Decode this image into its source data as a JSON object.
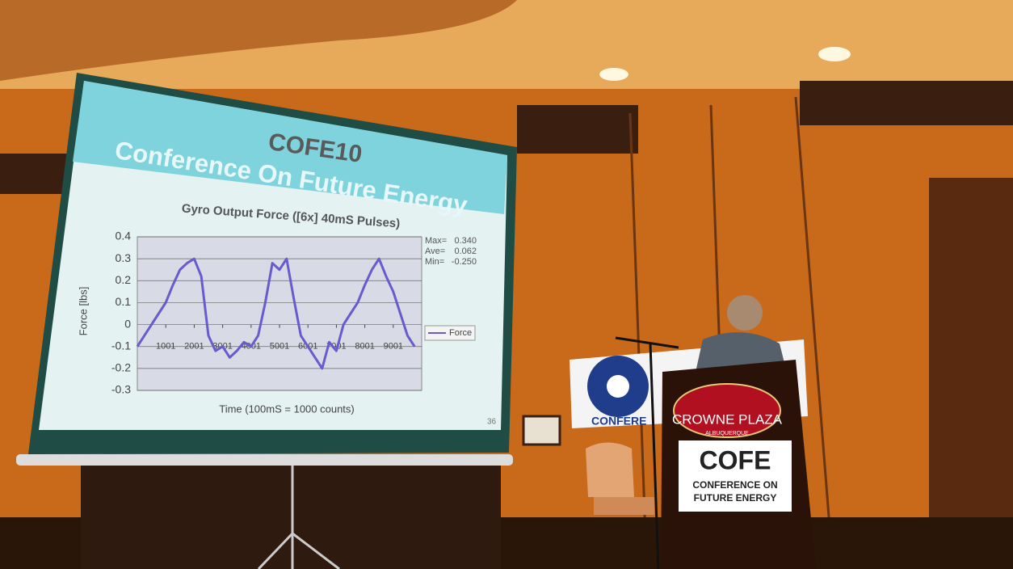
{
  "chart_data": {
    "type": "line",
    "title": "Gyro Output Force ([6x] 40mS Pulses)",
    "x_label": "Time (100mS = 1000 counts)",
    "y_label": "Force [lbs]",
    "x": [
      1,
      250,
      500,
      750,
      1000,
      1250,
      1500,
      1750,
      2000,
      2250,
      2500,
      2750,
      3000,
      3250,
      3500,
      3750,
      4000,
      4250,
      4500,
      4750,
      5000,
      5250,
      5500,
      5750,
      6000,
      6250,
      6500,
      6750,
      7000,
      7250,
      7500,
      7750,
      8000,
      8250,
      8500,
      8750,
      9000,
      9250,
      9500,
      9750
    ],
    "series": [
      {
        "name": "Force",
        "color": "#6a5acd",
        "values": [
          -0.1,
          -0.05,
          0.0,
          0.05,
          0.1,
          0.18,
          0.25,
          0.28,
          0.3,
          0.22,
          -0.05,
          -0.12,
          -0.1,
          -0.15,
          -0.12,
          -0.08,
          -0.1,
          -0.05,
          0.1,
          0.28,
          0.25,
          0.3,
          0.12,
          -0.05,
          -0.1,
          -0.15,
          -0.2,
          -0.08,
          -0.12,
          0.0,
          0.05,
          0.1,
          0.18,
          0.25,
          0.3,
          0.22,
          0.15,
          0.05,
          -0.05,
          -0.1
        ]
      }
    ],
    "xlim": [
      1,
      10000
    ],
    "xticks": [
      1001,
      2001,
      3001,
      4001,
      5001,
      6001,
      7001,
      8001,
      9001
    ],
    "ylim": [
      -0.3,
      0.4
    ],
    "yticks": [
      -0.3,
      -0.2,
      -0.1,
      0,
      0.1,
      0.2,
      0.3,
      0.4
    ],
    "grid": true,
    "legend": "right",
    "stats": [
      {
        "label": "Max=",
        "value": "0.340"
      },
      {
        "label": "Ave=",
        "value": "0.062"
      },
      {
        "label": "Min=",
        "value": "-0.250"
      }
    ]
  },
  "scene": {
    "slide_logo": "COFE10",
    "slide_heading": "Conference On Future Energy",
    "slide_number": "36",
    "banner": "CONFERE",
    "podium_hotel": "CROWNE PLAZA",
    "podium_city": "ALBUQUERQUE",
    "podium_logo": "COFE",
    "podium_sign_1": "CONFERENCE ON",
    "podium_sign_2": "FUTURE ENERGY"
  }
}
